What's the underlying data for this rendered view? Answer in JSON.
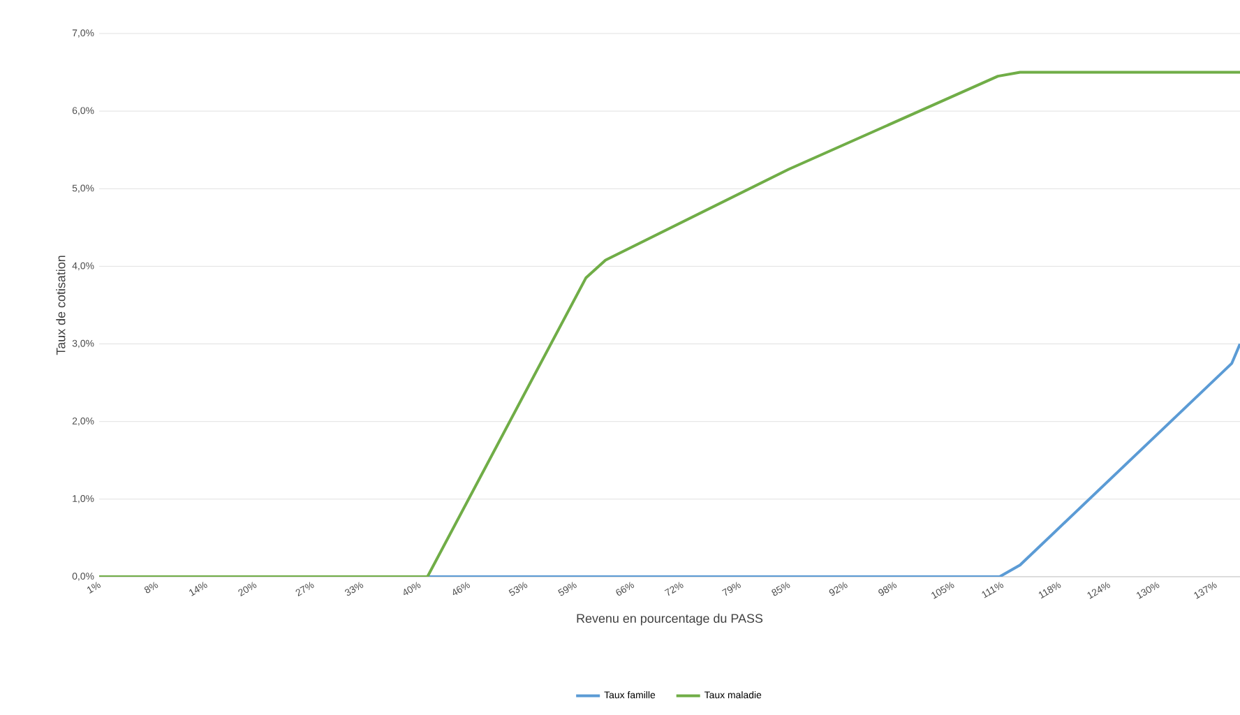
{
  "chart_data": {
    "type": "line",
    "xlabel": "Revenu en pourcentage du PASS",
    "ylabel": "Taux de cotisation",
    "xlim": [
      1,
      140
    ],
    "xticks": [
      {
        "value": 1,
        "label": "1%"
      },
      {
        "value": 8,
        "label": "8%"
      },
      {
        "value": 14,
        "label": "14%"
      },
      {
        "value": 20,
        "label": "20%"
      },
      {
        "value": 27,
        "label": "27%"
      },
      {
        "value": 33,
        "label": "33%"
      },
      {
        "value": 40,
        "label": "40%"
      },
      {
        "value": 46,
        "label": "46%"
      },
      {
        "value": 53,
        "label": "53%"
      },
      {
        "value": 59,
        "label": "59%"
      },
      {
        "value": 66,
        "label": "66%"
      },
      {
        "value": 72,
        "label": "72%"
      },
      {
        "value": 79,
        "label": "79%"
      },
      {
        "value": 85,
        "label": "85%"
      },
      {
        "value": 92,
        "label": "92%"
      },
      {
        "value": 98,
        "label": "98%"
      },
      {
        "value": 105,
        "label": "105%"
      },
      {
        "value": 111,
        "label": "111%"
      },
      {
        "value": 118,
        "label": "118%"
      },
      {
        "value": 124,
        "label": "124%"
      },
      {
        "value": 130,
        "label": "130%"
      },
      {
        "value": 137,
        "label": "137%"
      }
    ],
    "ylim": [
      0,
      7
    ],
    "yticks": [
      {
        "value": 0,
        "label": "0,0%"
      },
      {
        "value": 1,
        "label": "1,0%"
      },
      {
        "value": 2,
        "label": "2,0%"
      },
      {
        "value": 3,
        "label": "3,0%"
      },
      {
        "value": 4,
        "label": "4,0%"
      },
      {
        "value": 5,
        "label": "5,0%"
      },
      {
        "value": 6,
        "label": "6,0%"
      },
      {
        "value": 7,
        "label": "7,0%"
      }
    ],
    "grid": "y",
    "legend": "bottom",
    "marker": "none",
    "line_style": "solid",
    "series": [
      {
        "name": "Taux famille",
        "color": "#5b9bd5",
        "x": [
          1,
          110.7,
          113.2,
          139,
          140
        ],
        "values": [
          0,
          0,
          0.15,
          2.75,
          3.0
        ]
      },
      {
        "name": "Taux maladie",
        "color": "#70ad47",
        "x": [
          1,
          41,
          60.3,
          62.7,
          85,
          110.5,
          113.2,
          140
        ],
        "values": [
          0,
          0,
          3.85,
          4.08,
          5.25,
          6.45,
          6.5,
          6.5
        ]
      }
    ]
  }
}
